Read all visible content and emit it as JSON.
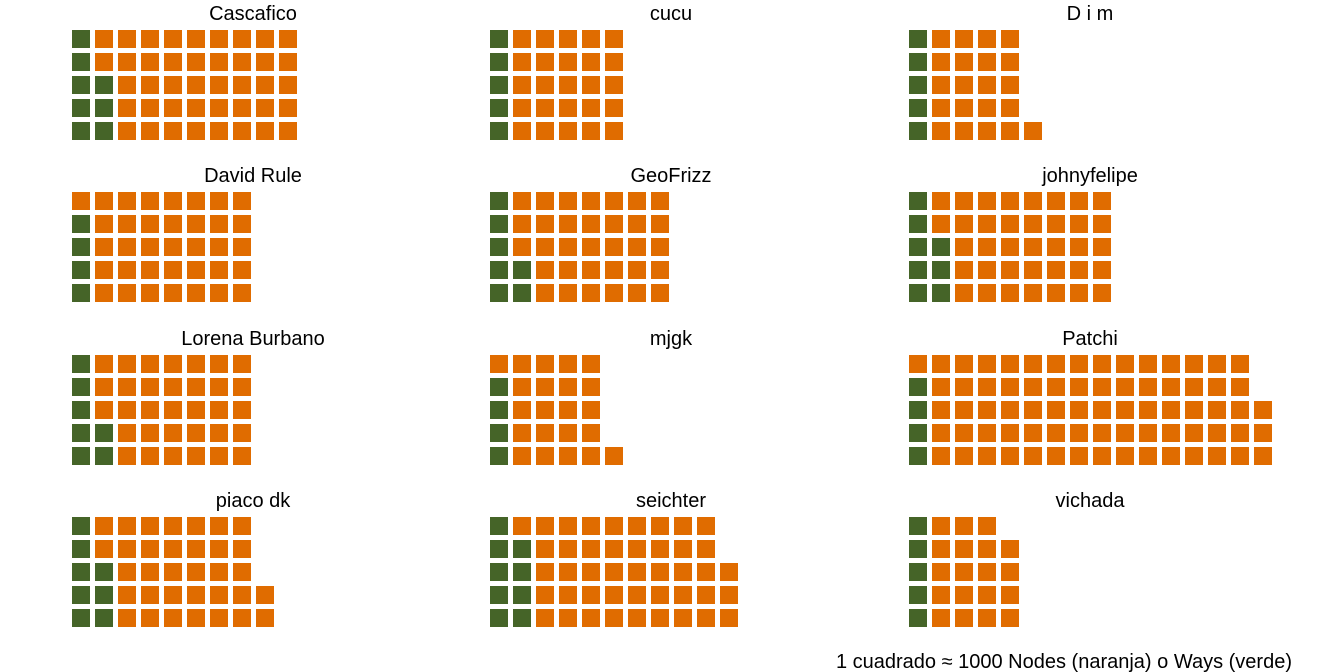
{
  "chart_data": {
    "type": "waffle",
    "caption": "1 cuadrado ≈ 1000 Nodes (naranja) o Ways (verde)",
    "colors": {
      "nodes": "#E06C00",
      "ways": "#456428"
    },
    "rows": 5,
    "panels": [
      {
        "title": "Cascafico",
        "ways": 8,
        "nodes": 42
      },
      {
        "title": "cucu",
        "ways": 5,
        "nodes": 25
      },
      {
        "title": "D  i  m",
        "ways": 5,
        "nodes": 21
      },
      {
        "title": "David Rule",
        "ways": 4,
        "nodes": 36
      },
      {
        "title": "GeoFrizz",
        "ways": 7,
        "nodes": 33
      },
      {
        "title": "johnyfelipe",
        "ways": 8,
        "nodes": 37
      },
      {
        "title": "Lorena Burbano",
        "ways": 7,
        "nodes": 33
      },
      {
        "title": "mjgk",
        "ways": 4,
        "nodes": 22
      },
      {
        "title": "Patchi",
        "ways": 4,
        "nodes": 74
      },
      {
        "title": "piaco  dk",
        "ways": 8,
        "nodes": 34
      },
      {
        "title": "seichter",
        "ways": 9,
        "nodes": 44
      },
      {
        "title": "vichada",
        "ways": 5,
        "nodes": 19
      }
    ]
  }
}
